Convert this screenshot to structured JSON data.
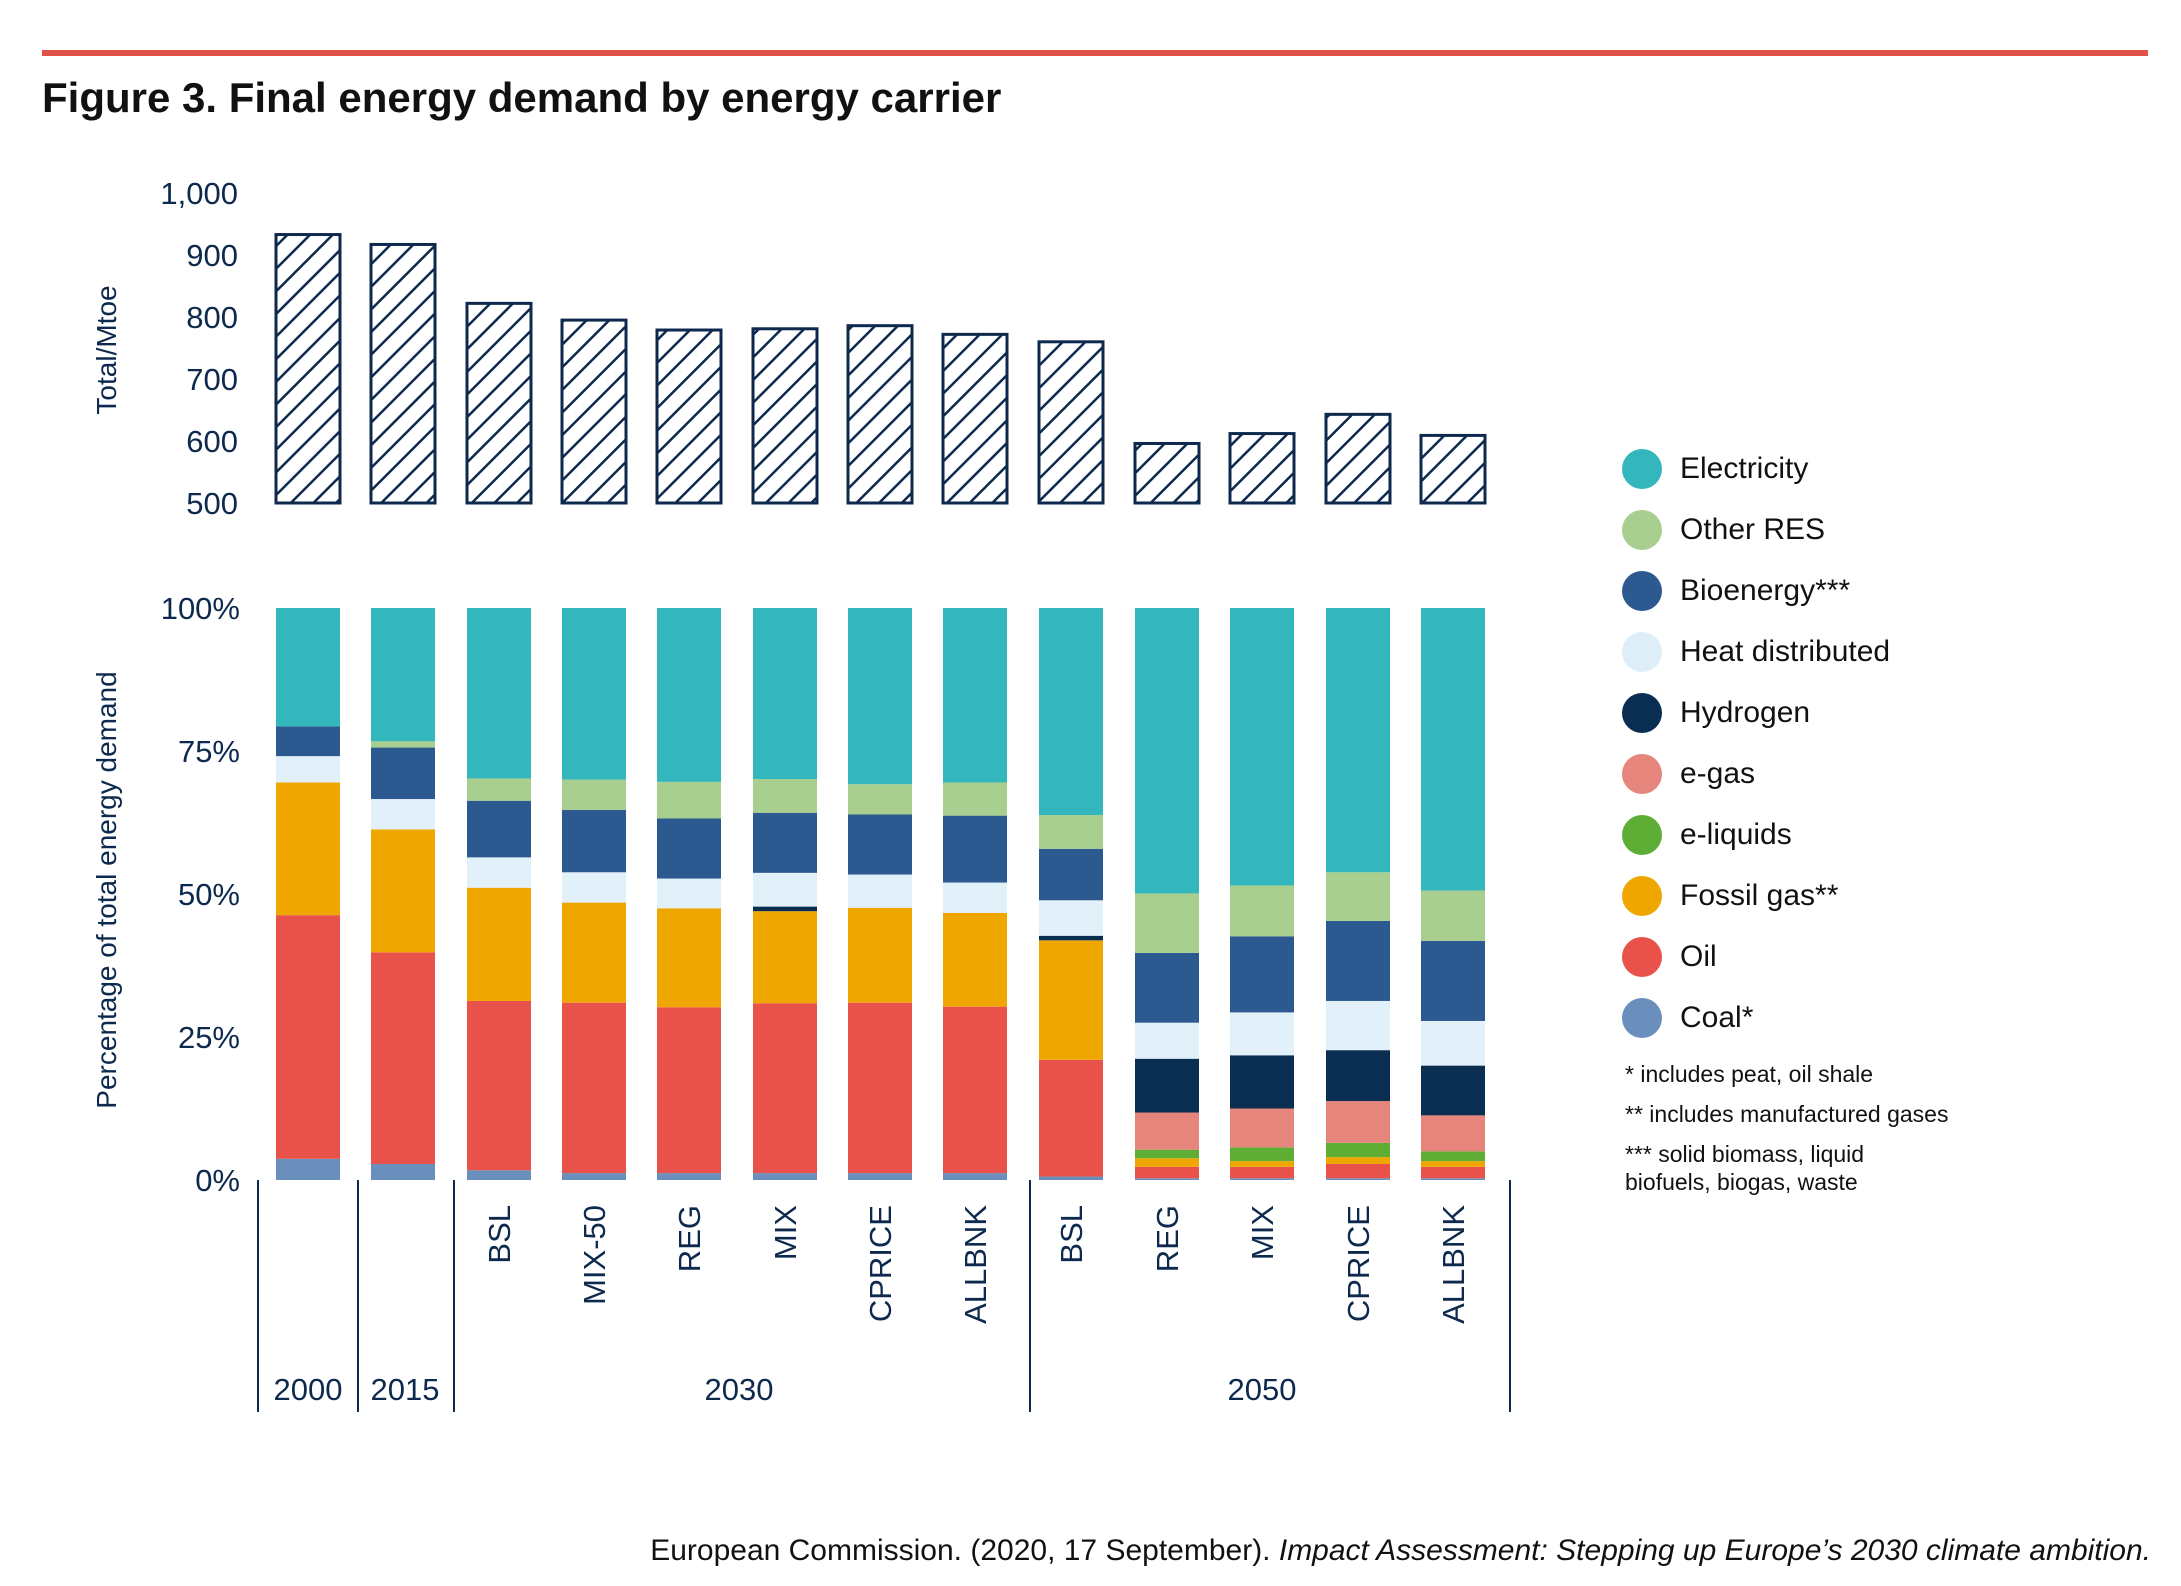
{
  "title": "Figure 3. Final energy demand by energy carrier",
  "source": {
    "plain": "European Commission. (2020, 17 September). ",
    "italic": "Impact Assessment: Stepping up Europe’s 2030 climate ambition."
  },
  "colors": {
    "Electricity": "#33b7bd",
    "Other RES": "#a8cf8f",
    "Bioenergy***": "#2c5a90",
    "Heat distributed": "#e2f0fa",
    "Hydrogen": "#0a2d52",
    "e-gas": "#e6857b",
    "e-liquids": "#5eae36",
    "Fossil gas**": "#efa600",
    "Oil": "#e8524a",
    "Coal*": "#6a8fbd"
  },
  "legend_items": [
    "Electricity",
    "Other RES",
    "Bioenergy***",
    "Heat distributed",
    "Hydrogen",
    "e-gas",
    "e-liquids",
    "Fossil gas**",
    "Oil",
    "Coal*"
  ],
  "notes": [
    "* includes peat, oil shale",
    "** includes manufactured gases",
    "*** solid biomass, liquid biofuels, biogas, waste"
  ],
  "chart_data": [
    {
      "type": "bar",
      "ylabel": "Total/Mtoe",
      "ylim": [
        500,
        1000
      ],
      "yticks": [
        "1,000",
        "900",
        "800",
        "700",
        "600",
        "500"
      ],
      "categories": [
        "2000",
        "2015",
        "2030 BSL",
        "2030 MIX-50",
        "2030 REG",
        "2030 MIX",
        "2030 CPRICE",
        "2030 ALLBNK",
        "2050 BSL",
        "2050 REG",
        "2050 MIX",
        "2050 CPRICE",
        "2050 ALLBNK"
      ],
      "values": [
        933,
        917,
        822,
        795,
        779,
        781,
        786,
        772,
        760,
        596,
        612,
        643,
        609
      ],
      "fill": "hatched"
    },
    {
      "type": "bar",
      "stacked": true,
      "ylabel": "Percentage of total energy demand",
      "ylim": [
        0,
        100
      ],
      "yticks": [
        "100%",
        "75%",
        "50%",
        "25%",
        "0%"
      ],
      "groups": [
        {
          "label": "2000",
          "bars": [
            ""
          ]
        },
        {
          "label": "2015",
          "bars": [
            ""
          ]
        },
        {
          "label": "2030",
          "bars": [
            "BSL",
            "MIX-50",
            "REG",
            "MIX",
            "CPRICE",
            "ALLBNK"
          ]
        },
        {
          "label": "2050",
          "bars": [
            "BSL",
            "REG",
            "MIX",
            "CPRICE",
            "ALLBNK"
          ]
        }
      ],
      "series": [
        {
          "name": "Coal*",
          "values": [
            3.7,
            2.8,
            1.7,
            1.2,
            1.2,
            1.2,
            1.2,
            1.2,
            0.6,
            0.3,
            0.3,
            0.3,
            0.3
          ]
        },
        {
          "name": "Oil",
          "values": [
            42.6,
            37.0,
            29.6,
            29.8,
            29.0,
            29.7,
            29.8,
            29.1,
            20.4,
            2.0,
            2.0,
            2.5,
            2.0
          ]
        },
        {
          "name": "Fossil gas**",
          "values": [
            23.2,
            21.5,
            19.8,
            17.5,
            17.3,
            16.1,
            16.6,
            16.4,
            20.9,
            1.5,
            1.0,
            1.2,
            1.0
          ]
        },
        {
          "name": "e-liquids",
          "values": [
            0,
            0,
            0,
            0,
            0,
            0,
            0,
            0,
            0,
            1.5,
            2.4,
            2.5,
            1.7
          ]
        },
        {
          "name": "e-gas",
          "values": [
            0,
            0,
            0,
            0,
            0,
            0,
            0,
            0,
            0,
            6.5,
            6.8,
            7.3,
            6.3
          ]
        },
        {
          "name": "Hydrogen",
          "values": [
            0,
            0,
            0,
            0,
            0,
            0.8,
            0,
            0,
            0.8,
            9.4,
            9.3,
            8.9,
            8.7
          ]
        },
        {
          "name": "Heat distributed",
          "values": [
            4.6,
            5.3,
            5.3,
            5.3,
            5.2,
            5.9,
            5.8,
            5.3,
            6.2,
            6.3,
            7.5,
            8.6,
            7.8
          ]
        },
        {
          "name": "Bioenergy***",
          "values": [
            5.2,
            9.0,
            9.9,
            10.9,
            10.5,
            10.5,
            10.5,
            11.7,
            9.0,
            12.2,
            13.3,
            14.0,
            14.0
          ]
        },
        {
          "name": "Other RES",
          "values": [
            0,
            1.1,
            3.9,
            5.3,
            6.4,
            5.9,
            5.3,
            5.8,
            5.9,
            10.4,
            8.9,
            8.5,
            8.8
          ]
        },
        {
          "name": "Electricity",
          "values": [
            20.7,
            23.3,
            29.8,
            30.0,
            30.4,
            29.9,
            30.8,
            30.5,
            36.2,
            49.9,
            48.5,
            46.2,
            49.4
          ]
        }
      ]
    }
  ]
}
